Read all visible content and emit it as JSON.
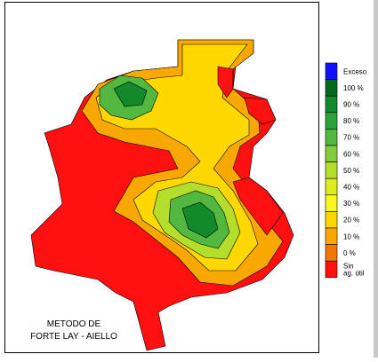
{
  "map": {
    "caption": [
      "METODO DE",
      "FORTE LAY - AIELLO"
    ],
    "legend": [
      {
        "label": [
          "Exceso"
        ],
        "color": "#1010ff"
      },
      {
        "label": [
          "100 %"
        ],
        "color": "#006a1e"
      },
      {
        "label": [
          "90 %"
        ],
        "color": "#128a2c"
      },
      {
        "label": [
          "80 %"
        ],
        "color": "#2ea23a"
      },
      {
        "label": [
          "70 %"
        ],
        "color": "#52b840"
      },
      {
        "label": [
          "60 %"
        ],
        "color": "#84cc3c"
      },
      {
        "label": [
          "50 %"
        ],
        "color": "#b4de2c"
      },
      {
        "label": [
          "40 %"
        ],
        "color": "#dcec1c"
      },
      {
        "label": [
          "30 %"
        ],
        "color": "#f8f820"
      },
      {
        "label": [
          "20 %"
        ],
        "color": "#ffd800"
      },
      {
        "label": [
          "10 %"
        ],
        "color": "#f8a800"
      },
      {
        "label": [
          "0 %"
        ],
        "color": "#f07800"
      },
      {
        "label": [
          "Sin",
          "ag. útil"
        ],
        "color": "#ff1010"
      }
    ]
  }
}
